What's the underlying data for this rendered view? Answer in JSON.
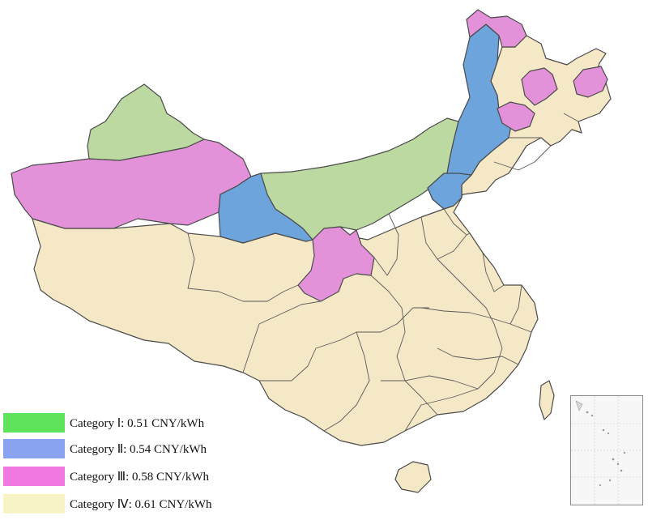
{
  "colors": {
    "category_1": "#5fe35a",
    "category_2": "#8aa3f0",
    "category_3": "#f078e0",
    "category_4": "#f8f4c6",
    "map_category_1": "#bcd9a2",
    "map_category_2": "#6ea4dc",
    "map_category_3": "#e391d8",
    "map_category_4": "#f5e8c6"
  },
  "legend": {
    "items": [
      {
        "label": "Category Ⅰ: 0.51 CNY/kWh",
        "color_key": "category_1"
      },
      {
        "label": "Category Ⅱ: 0.54 CNY/kWh",
        "color_key": "category_2"
      },
      {
        "label": "Category Ⅲ: 0.58 CNY/kWh",
        "color_key": "category_3"
      },
      {
        "label": "Category Ⅳ: 0.61 CNY/kWh",
        "color_key": "category_4"
      }
    ]
  },
  "regions": [
    {
      "name": "northern-xinjiang",
      "category": 1
    },
    {
      "name": "southern-xinjiang",
      "category": 3
    },
    {
      "name": "western-qinghai-west-gansu",
      "category": 2
    },
    {
      "name": "gansu-inner-mongolia-belt",
      "category": 1
    },
    {
      "name": "eastern-inner-mongolia",
      "category": 2
    },
    {
      "name": "hulunbuir-tip",
      "category": 3
    },
    {
      "name": "heilongjiang-west-patch",
      "category": 3
    },
    {
      "name": "heilongjiang-east-patch",
      "category": 3
    },
    {
      "name": "jilin-west-patch",
      "category": 3
    },
    {
      "name": "ningxia-qinghai-east",
      "category": 3
    },
    {
      "name": "hebei-north-patch",
      "category": 2
    },
    {
      "name": "rest-of-china",
      "category": 4
    }
  ]
}
